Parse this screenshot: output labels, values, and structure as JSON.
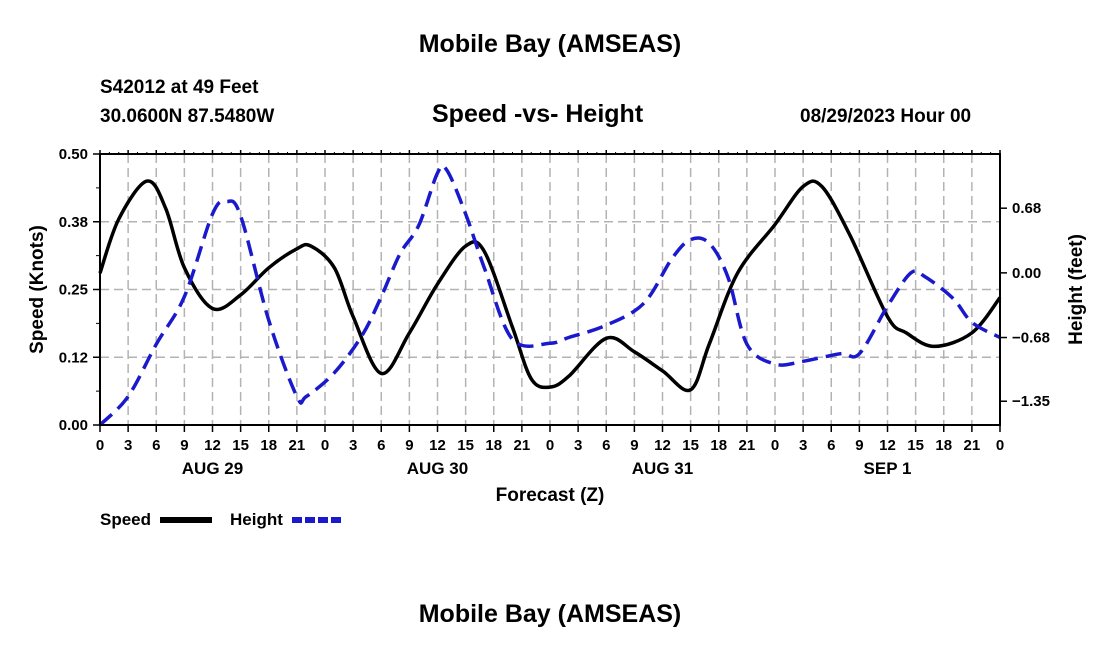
{
  "header": {
    "title": "Mobile Bay (AMSEAS)",
    "station": "S42012 at 49 Feet",
    "coords": "30.0600N  87.5480W",
    "chart_title": "Speed -vs- Height",
    "datetime": "08/29/2023 Hour 00"
  },
  "footer": {
    "title": "Mobile Bay (AMSEAS)"
  },
  "colors": {
    "speed": "#000000",
    "height": "#1a1acc",
    "grid": "#b3b3b3"
  },
  "chart_data": {
    "type": "line",
    "xlabel": "Forecast (Z)",
    "ylabel": "Speed (Knots)",
    "y2label": "Height (feet)",
    "xlim": [
      0,
      96
    ],
    "ylim": [
      0,
      0.5
    ],
    "y2lim": [
      -1.6,
      1.25
    ],
    "y_ticks": [
      0.0,
      0.125,
      0.25,
      0.375,
      0.5
    ],
    "y_tick_labels": [
      "0.00",
      "0.12",
      "0.25",
      "0.38",
      "0.50"
    ],
    "y2_ticks": [
      -1.35,
      -0.68,
      0.0,
      0.68
    ],
    "y2_tick_labels": [
      "−1.35",
      "−0.68",
      "0.00",
      "0.68"
    ],
    "x_ticks": [
      0,
      3,
      6,
      9,
      12,
      15,
      18,
      21,
      24,
      27,
      30,
      33,
      36,
      39,
      42,
      45,
      48,
      51,
      54,
      57,
      60,
      63,
      66,
      69,
      72,
      75,
      78,
      81,
      84,
      87,
      90,
      93,
      96
    ],
    "x_tick_labels": [
      "0",
      "3",
      "6",
      "9",
      "12",
      "15",
      "18",
      "21",
      "0",
      "3",
      "6",
      "9",
      "12",
      "15",
      "18",
      "21",
      "0",
      "3",
      "6",
      "9",
      "12",
      "15",
      "18",
      "21",
      "0",
      "3",
      "6",
      "9",
      "12",
      "15",
      "18",
      "21",
      "0"
    ],
    "day_labels": [
      {
        "x": 12,
        "label": "AUG 29"
      },
      {
        "x": 36,
        "label": "AUG 30"
      },
      {
        "x": 60,
        "label": "AUG 31"
      },
      {
        "x": 84,
        "label": "SEP 1"
      }
    ],
    "series": [
      {
        "name": "Speed",
        "axis": "left",
        "style": "solid",
        "x": [
          0,
          2,
          5,
          7,
          9,
          12,
          15,
          18,
          21,
          22.5,
          25,
          27,
          30,
          33,
          36,
          39,
          41,
          44,
          46,
          48,
          50,
          54,
          57,
          60,
          63,
          65,
          68,
          72,
          75,
          77,
          80,
          84,
          86,
          89,
          93,
          96
        ],
        "values": [
          0.28,
          0.38,
          0.45,
          0.4,
          0.29,
          0.215,
          0.24,
          0.29,
          0.325,
          0.33,
          0.29,
          0.2,
          0.095,
          0.17,
          0.26,
          0.33,
          0.32,
          0.18,
          0.085,
          0.07,
          0.09,
          0.16,
          0.135,
          0.1,
          0.065,
          0.15,
          0.28,
          0.37,
          0.44,
          0.44,
          0.35,
          0.2,
          0.17,
          0.145,
          0.17,
          0.235
        ]
      },
      {
        "name": "Height",
        "axis": "right",
        "style": "dashed",
        "x": [
          0,
          3,
          6,
          9,
          12,
          13.5,
          15,
          18,
          21,
          22,
          25,
          28,
          30,
          32,
          34,
          36,
          37,
          39,
          41,
          44,
          48,
          50,
          54,
          58,
          61,
          63,
          65,
          67,
          69,
          72,
          75,
          79,
          81,
          84,
          86.5,
          88,
          91,
          93,
          96
        ],
        "values": [
          -1.6,
          -1.3,
          -0.75,
          -0.25,
          0.62,
          0.75,
          0.6,
          -0.5,
          -1.3,
          -1.3,
          -1.05,
          -0.65,
          -0.25,
          0.2,
          0.5,
          1.05,
          1.08,
          0.62,
          0.05,
          -0.7,
          -0.74,
          -0.68,
          -0.55,
          -0.32,
          0.15,
          0.35,
          0.31,
          -0.05,
          -0.75,
          -0.96,
          -0.93,
          -0.85,
          -0.85,
          -0.35,
          0.0,
          -0.04,
          -0.27,
          -0.52,
          -0.68
        ]
      }
    ],
    "legend": [
      {
        "label": "Speed",
        "style": "solid"
      },
      {
        "label": "Height",
        "style": "dashed"
      }
    ]
  }
}
